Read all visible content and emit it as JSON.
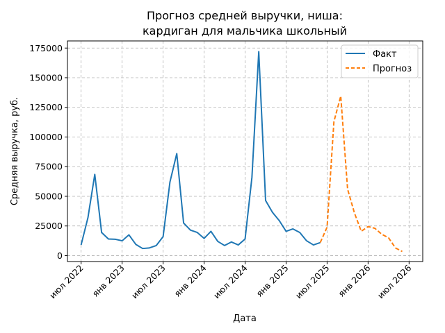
{
  "chart_data": {
    "type": "line",
    "title": "Прогноз средней выручки, ниша:\nкардиган для мальчика школьный",
    "title_lines": [
      "Прогноз средней выручки, ниша:",
      "кардиган для мальчика школьный"
    ],
    "xlabel": "Дата",
    "ylabel": "Средняя выручка, руб.",
    "x_ticks": [
      "2022-07",
      "2023-01",
      "2023-07",
      "2024-01",
      "2024-07",
      "2025-01",
      "2025-07",
      "2026-01",
      "2026-07"
    ],
    "x_tick_labels": [
      "июл 2022",
      "янв 2023",
      "июл 2023",
      "янв 2024",
      "июл 2024",
      "янв 2025",
      "июл 2025",
      "янв 2026",
      "июл 2026"
    ],
    "y_ticks": [
      0,
      25000,
      50000,
      75000,
      100000,
      125000,
      150000,
      175000
    ],
    "y_tick_labels": [
      "0",
      "25000",
      "50000",
      "75000",
      "100000",
      "125000",
      "150000",
      "175000"
    ],
    "xlim": [
      "2022-05",
      "2026-09"
    ],
    "ylim": [
      -5000,
      181000
    ],
    "grid": true,
    "legend_position": "top-right",
    "series": [
      {
        "name": "Факт",
        "color": "#1f77b4",
        "style": "solid",
        "x": [
          "2022-07",
          "2022-08",
          "2022-09",
          "2022-10",
          "2022-11",
          "2022-12",
          "2023-01",
          "2023-02",
          "2023-03",
          "2023-04",
          "2023-05",
          "2023-06",
          "2023-07",
          "2023-08",
          "2023-09",
          "2023-10",
          "2023-11",
          "2023-12",
          "2024-01",
          "2024-02",
          "2024-03",
          "2024-04",
          "2024-05",
          "2024-06",
          "2024-07",
          "2024-08",
          "2024-09",
          "2024-10",
          "2024-11",
          "2024-12",
          "2025-01",
          "2025-02",
          "2025-03",
          "2025-04",
          "2025-05",
          "2025-06"
        ],
        "y": [
          9000,
          32000,
          68500,
          19500,
          14000,
          13800,
          12500,
          17500,
          9500,
          6000,
          6500,
          8500,
          16000,
          62000,
          86000,
          27500,
          21500,
          19500,
          14500,
          20500,
          12000,
          8500,
          11500,
          9000,
          14000,
          66000,
          172000,
          46500,
          36500,
          29500,
          20500,
          22500,
          19500,
          12500,
          9000,
          11000
        ]
      },
      {
        "name": "Прогноз",
        "color": "#ff7f0e",
        "style": "dashed",
        "x": [
          "2025-06",
          "2025-07",
          "2025-08",
          "2025-09",
          "2025-10",
          "2025-11",
          "2025-12",
          "2026-01",
          "2026-02",
          "2026-03",
          "2026-04",
          "2026-05",
          "2026-06"
        ],
        "y": [
          11000,
          24000,
          113000,
          134500,
          56000,
          36000,
          20500,
          24500,
          23000,
          18000,
          15000,
          6500,
          3500
        ]
      }
    ]
  }
}
